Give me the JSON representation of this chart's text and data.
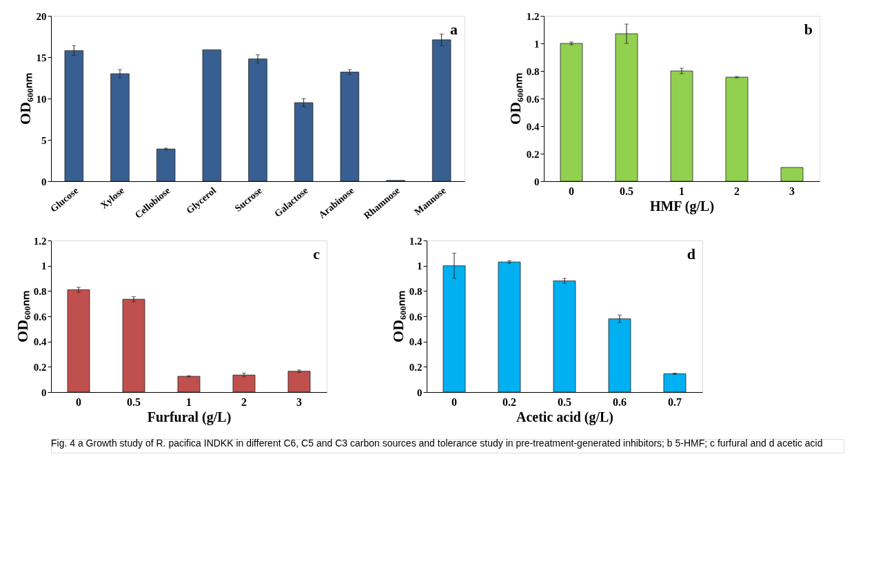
{
  "chart_data": [
    {
      "type": "bar",
      "ylabel": "OD₆₀₀ₙₘ",
      "categories": [
        "Glucose",
        "Xylose",
        "Cellobiose",
        "Glycerol",
        "Sucrose",
        "Galactose",
        "Arabinose",
        "Rhamnose",
        "Mannose"
      ],
      "values": [
        15.8,
        13.0,
        3.9,
        15.9,
        14.8,
        9.5,
        13.2,
        0.1,
        17.1
      ],
      "errors": [
        0.6,
        0.5,
        0.1,
        null,
        0.5,
        0.5,
        0.3,
        null,
        0.7
      ],
      "color": "#375f91",
      "ylim": [
        0,
        20
      ],
      "yticks": [
        0,
        5,
        10,
        15,
        20
      ],
      "annotations": [
        "a"
      ]
    },
    {
      "type": "bar",
      "xlabel": "HMF (g/L)",
      "ylabel": "OD₆₀₀ₙₘ",
      "categories": [
        "0",
        "0.5",
        "1",
        "2",
        "3"
      ],
      "values": [
        1.0,
        1.07,
        0.8,
        0.755,
        0.1
      ],
      "errors": [
        0.01,
        0.07,
        0.02,
        0.005,
        null
      ],
      "color": "#92d050",
      "ylim": [
        0,
        1.2
      ],
      "yticks": [
        0,
        0.2,
        0.4,
        0.6,
        0.8,
        1,
        1.2
      ],
      "annotations": [
        "b"
      ]
    },
    {
      "type": "bar",
      "xlabel": "Furfural (g/L)",
      "ylabel": "OD₆₀₀ₙₘ",
      "categories": [
        "0",
        "0.5",
        "1",
        "2",
        "3"
      ],
      "values": [
        0.81,
        0.735,
        0.125,
        0.135,
        0.165
      ],
      "errors": [
        0.02,
        0.02,
        0.005,
        0.015,
        0.01
      ],
      "color": "#c0504d",
      "ylim": [
        0,
        1.2
      ],
      "yticks": [
        0,
        0.2,
        0.4,
        0.6,
        0.8,
        1,
        1.2
      ],
      "annotations": [
        "c"
      ]
    },
    {
      "type": "bar",
      "xlabel": "Acetic acid (g/L)",
      "ylabel": "OD₆₀₀ₙₘ",
      "categories": [
        "0",
        "0.2",
        "0.5",
        "0.6",
        "0.7"
      ],
      "values": [
        1.0,
        1.03,
        0.88,
        0.58,
        0.145
      ],
      "errors": [
        0.1,
        0.01,
        0.02,
        0.03,
        0.005
      ],
      "color": "#00b0f0",
      "ylim": [
        0,
        1.2
      ],
      "yticks": [
        0,
        0.2,
        0.4,
        0.6,
        0.8,
        1,
        1.2
      ],
      "annotations": [
        "d",
        "Fig. 4 a Growth study of R. pacifica INDKK in different C6, C5 and C3 carbon sources and tolerance study in pre-treatment-generated inhibitors; b 5-HMF; c furfural and d acetic acid"
      ]
    }
  ]
}
